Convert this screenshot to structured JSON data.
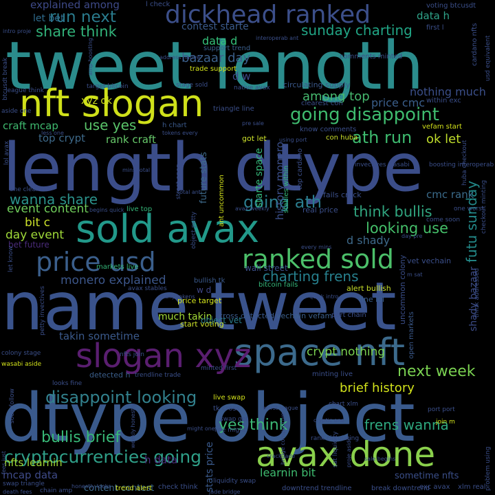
{
  "words": [
    {
      "text": "tweet length",
      "color": "#2b8c8c"
    },
    {
      "text": "length dtype",
      "color": "#3b4d89"
    },
    {
      "text": "name tweet",
      "color": "#3a538c"
    },
    {
      "text": "dtype object",
      "color": "#3a5a8c"
    },
    {
      "text": "nft slogan",
      "color": "#cfe01a"
    },
    {
      "text": "sold avax",
      "color": "#22998a"
    },
    {
      "text": "dickhead ranked",
      "color": "#3c4f8a"
    },
    {
      "text": "space nft",
      "color": "#3c6a8c"
    },
    {
      "text": "slogan xyz",
      "color": "#5a1e70"
    },
    {
      "text": "price usd",
      "color": "#3b5f8c"
    },
    {
      "text": "avax done",
      "color": "#8ad04c"
    },
    {
      "text": "ranked sold",
      "color": "#4cc06a"
    },
    {
      "text": "going disappoint",
      "color": "#3fbc6f"
    },
    {
      "text": "cryptocurrencies going",
      "color": "#2f9f88"
    },
    {
      "text": "disappoint looking",
      "color": "#32818d"
    },
    {
      "text": "run next",
      "color": "#2a7c8e"
    },
    {
      "text": "share think",
      "color": "#31b27a"
    },
    {
      "text": "sunday charting",
      "color": "#21a585"
    },
    {
      "text": "ath run",
      "color": "#3ebb6f"
    },
    {
      "text": "wanna share",
      "color": "#2b928b"
    },
    {
      "text": "going ath",
      "color": "#2b7d8e"
    },
    {
      "text": "looking use",
      "color": "#45c06a"
    },
    {
      "text": "think bullis",
      "color": "#30a57f"
    },
    {
      "text": "charting frens",
      "color": "#27808e"
    },
    {
      "text": "futu sunday",
      "color": "#238a8a"
    },
    {
      "text": "next week",
      "color": "#7ad151"
    },
    {
      "text": "brief history",
      "color": "#d2e21b"
    },
    {
      "text": "frens wanna",
      "color": "#2ea87f"
    },
    {
      "text": "yes think",
      "color": "#3cb876"
    },
    {
      "text": "bullis brief",
      "color": "#38b977"
    },
    {
      "text": "use yes",
      "color": "#5ac56a"
    },
    {
      "text": "ok let",
      "color": "#bfdd2b"
    },
    {
      "text": "monero explained",
      "color": "#3d578b"
    },
    {
      "text": "event content",
      "color": "#6fcc5a"
    },
    {
      "text": "day event",
      "color": "#a0da39"
    },
    {
      "text": "bit c",
      "color": "#cbe02a"
    },
    {
      "text": "craft mcap",
      "color": "#3fba6f"
    },
    {
      "text": "rank craft",
      "color": "#67c96a"
    },
    {
      "text": "top crypt",
      "color": "#3e6a8b"
    },
    {
      "text": "xyz ok",
      "color": "#cfe11d"
    },
    {
      "text": "bazaar day",
      "color": "#3b5f8a"
    },
    {
      "text": "data d",
      "color": "#35c17a"
    },
    {
      "text": "d w",
      "color": "#3e4b89"
    },
    {
      "text": "among top",
      "color": "#46b96f"
    },
    {
      "text": "explained among",
      "color": "#3e4a89"
    },
    {
      "text": "let bet",
      "color": "#2f6c8e"
    },
    {
      "text": "contest starte",
      "color": "#3b5b8c"
    },
    {
      "text": "data h",
      "color": "#2fa48a"
    },
    {
      "text": "nothing much",
      "color": "#3b4f8a"
    },
    {
      "text": "price cmc",
      "color": "#3b5f8c"
    },
    {
      "text": "cmc rank",
      "color": "#3b6c8c"
    },
    {
      "text": "d shady",
      "color": "#3e6a8b"
    },
    {
      "text": "crypt nothing",
      "color": "#7ad151"
    },
    {
      "text": "mcap data",
      "color": "#3f4b89"
    },
    {
      "text": "nfts learnin",
      "color": "#a2da37"
    },
    {
      "text": "learnin bit",
      "color": "#3ebb6f"
    },
    {
      "text": "h data",
      "color": "#4a2b7a"
    },
    {
      "text": "content contest",
      "color": "#3e6a8b"
    },
    {
      "text": "takin sometime",
      "color": "#3b5a8c"
    },
    {
      "text": "much takin",
      "color": "#a2da37"
    },
    {
      "text": "sometime nfts",
      "color": "#3b4f8a"
    },
    {
      "text": "shady bazaar",
      "color": "#3d4d89"
    },
    {
      "text": "stats price",
      "color": "#3a5a8c"
    },
    {
      "text": "starte space",
      "color": "#35b779"
    },
    {
      "text": "history monero",
      "color": "#3b4f8a"
    },
    {
      "text": "future stats",
      "color": "#3e6a8b"
    },
    {
      "text": "object vet",
      "color": "#2a7c8e"
    },
    {
      "text": "w d",
      "color": "#3f4788"
    },
    {
      "text": "price target",
      "color": "#d2e21b"
    },
    {
      "text": "start voting",
      "color": "#cbe02a"
    },
    {
      "text": "bullish tk",
      "color": "#3b5a8c"
    },
    {
      "text": "markets live",
      "color": "#35b779"
    },
    {
      "text": "wall street",
      "color": "#3b4f8a"
    },
    {
      "text": "alert bullish",
      "color": "#c9df2a"
    },
    {
      "text": "bitcoin fails",
      "color": "#35b779"
    },
    {
      "text": "bet future",
      "color": "#4a2b7a"
    },
    {
      "text": "detected h",
      "color": "#3b5f8c"
    },
    {
      "text": "cross detected",
      "color": "#3b5a8c"
    },
    {
      "text": "vechain vefam",
      "color": "#3b5f8c"
    },
    {
      "text": "minting live",
      "color": "#3b4f8a"
    },
    {
      "text": "port chain",
      "color": "#3b4f8a"
    },
    {
      "text": "fine lol",
      "color": "#3b5f8c"
    },
    {
      "text": "vet vechain",
      "color": "#3b4f8a"
    },
    {
      "text": "uncommon colony",
      "color": "#3b4f8a"
    },
    {
      "text": "open markets",
      "color": "#3b5a8c"
    },
    {
      "text": "fails crack",
      "color": "#3b4f8a"
    },
    {
      "text": "real price",
      "color": "#3b4f8a"
    },
    {
      "text": "live top",
      "color": "#35b779"
    },
    {
      "text": "ant uncommon",
      "color": "#d2e21b"
    },
    {
      "text": "stables within",
      "color": "#35b779"
    },
    {
      "text": "top cardano",
      "color": "#3b4f8a"
    },
    {
      "text": "con huba",
      "color": "#cbe02a"
    },
    {
      "text": "got let",
      "color": "#cbe02a"
    },
    {
      "text": "vefam start",
      "color": "#d2e21b"
    },
    {
      "text": "know comments",
      "color": "#3b4f8a"
    },
    {
      "text": "comments minted",
      "color": "#3b4f8a"
    },
    {
      "text": "circulating supply",
      "color": "#3b5a8c"
    },
    {
      "text": "trade support",
      "color": "#d2e21b"
    },
    {
      "text": "support trend",
      "color": "#3b5f8c"
    },
    {
      "text": "triangle line",
      "color": "#3b4f8a"
    },
    {
      "text": "within exc",
      "color": "#3b4f8a"
    },
    {
      "text": "clearest con",
      "color": "#3b4f8a"
    },
    {
      "text": "voting btcusdt",
      "color": "#3b4f8a"
    },
    {
      "text": "cardano nfts",
      "color": "#3b4f8a"
    },
    {
      "text": "first l",
      "color": "#3b4f8a"
    },
    {
      "text": "l check",
      "color": "#3b4f8a"
    },
    {
      "text": "h chart",
      "color": "#3b5a8c"
    },
    {
      "text": "target bitcoin",
      "color": "#3b4f8a"
    },
    {
      "text": "native avax",
      "color": "#3b4f8a"
    },
    {
      "text": "league think",
      "color": "#3b4f8a"
    },
    {
      "text": "btcusdt break",
      "color": "#3b4f8a"
    },
    {
      "text": "aside one",
      "color": "#3b4f8a"
    },
    {
      "text": "lol avax",
      "color": "#3b4f8a"
    },
    {
      "text": "one clearest",
      "color": "#3b4f8a"
    },
    {
      "text": "let know",
      "color": "#3b4f8a"
    },
    {
      "text": "petty invectives",
      "color": "#3b4f8a"
    },
    {
      "text": "colony stage",
      "color": "#3b4f8a"
    },
    {
      "text": "wasabi aside",
      "color": "#d2e21b"
    },
    {
      "text": "nfts join",
      "color": "#3b4f8a"
    },
    {
      "text": "minted first",
      "color": "#3b4f8a"
    },
    {
      "text": "trendline trade",
      "color": "#3b4f8a"
    },
    {
      "text": "looks fine",
      "color": "#3b4f8a"
    },
    {
      "text": "soon follow",
      "color": "#3b4f8a"
    },
    {
      "text": "live swap",
      "color": "#d2e21b"
    },
    {
      "text": "tk cross",
      "color": "#3b4f8a"
    },
    {
      "text": "swap got",
      "color": "#3b4f8a"
    },
    {
      "text": "line might",
      "color": "#3b4f8a"
    },
    {
      "text": "chart xlm",
      "color": "#3b4f8a"
    },
    {
      "text": "rank circulating",
      "color": "#3b4f8a"
    },
    {
      "text": "sat liquidity",
      "color": "#3b4f8a"
    },
    {
      "text": "port port",
      "color": "#3b4f8a"
    },
    {
      "text": "join m",
      "color": "#d2e21b"
    },
    {
      "text": "swap triangle",
      "color": "#3b4f8a"
    },
    {
      "text": "trend alert",
      "color": "#d2e21b"
    },
    {
      "text": "check think",
      "color": "#3b4f8a"
    },
    {
      "text": "liquidity swap",
      "color": "#3b4f8a"
    },
    {
      "text": "downtrend trendline",
      "color": "#3b4f8a"
    },
    {
      "text": "break downtrend",
      "color": "#3b4f8a"
    },
    {
      "text": "exc avax",
      "color": "#3b4f8a"
    },
    {
      "text": "xlm real",
      "color": "#3b4f8a"
    },
    {
      "text": "chain amp",
      "color": "#3b4f8a"
    },
    {
      "text": "jade bridge",
      "color": "#3b4f8a"
    },
    {
      "text": "death fees",
      "color": "#3b4f8a"
    },
    {
      "text": "fees just",
      "color": "#3b4f8a"
    },
    {
      "text": "think addressed",
      "color": "#3b4f8a"
    },
    {
      "text": "checkout minting",
      "color": "#3b4f8a"
    },
    {
      "text": "huba checkout",
      "color": "#3b4f8a"
    },
    {
      "text": "come soon",
      "color": "#3b4f8a"
    },
    {
      "text": "one worst",
      "color": "#3b4f8a"
    },
    {
      "text": "invectives wasabi",
      "color": "#3b4f8a"
    },
    {
      "text": "boosting interoperab",
      "color": "#3b4f8a"
    },
    {
      "text": "avax stables",
      "color": "#3b4f8a"
    },
    {
      "text": "every mins",
      "color": "#3b4f8a"
    },
    {
      "text": "usd equivalent",
      "color": "#3b4f8a"
    },
    {
      "text": "problem using",
      "color": "#3b4f8a"
    },
    {
      "text": "might one",
      "color": "#3b4f8a"
    },
    {
      "text": "worst league",
      "color": "#3b4f8a"
    },
    {
      "text": "cryptic one",
      "color": "#3b4f8a"
    },
    {
      "text": "sale begins",
      "color": "#3b4f8a"
    },
    {
      "text": "begins quick",
      "color": "#3b4f8a"
    },
    {
      "text": "quick intro",
      "color": "#3b4f8a"
    },
    {
      "text": "intro proje",
      "color": "#3b4f8a"
    },
    {
      "text": "many tokens",
      "color": "#3b4f8a"
    },
    {
      "text": "tokens every",
      "color": "#3b4f8a"
    },
    {
      "text": "less one",
      "color": "#3b4f8a"
    },
    {
      "text": "crack jade",
      "color": "#3b4f8a"
    },
    {
      "text": "address native",
      "color": "#3b4f8a"
    },
    {
      "text": "amp boosting",
      "color": "#3b4f8a"
    },
    {
      "text": "stage sold",
      "color": "#3b4f8a"
    },
    {
      "text": "pre sale",
      "color": "#3b4f8a"
    },
    {
      "text": "day pre",
      "color": "#3b4f8a"
    },
    {
      "text": "m sat",
      "color": "#3b4f8a"
    },
    {
      "text": "proje aside",
      "color": "#3b4f8a"
    },
    {
      "text": "bridge competitive",
      "color": "#3b4f8a"
    },
    {
      "text": "avax weekly",
      "color": "#3b4f8a"
    },
    {
      "text": "weekly honestly",
      "color": "#3b4f8a"
    },
    {
      "text": "honestly looks",
      "color": "#3b4f8a"
    },
    {
      "text": "street open",
      "color": "#3b4f8a"
    },
    {
      "text": "object petty",
      "color": "#3b4f8a"
    },
    {
      "text": "using port",
      "color": "#3b4f8a"
    },
    {
      "text": "total ant",
      "color": "#3b4f8a"
    },
    {
      "text": "interoperab ant",
      "color": "#3b4f8a"
    },
    {
      "text": "mins total",
      "color": "#3b4f8a"
    }
  ]
}
